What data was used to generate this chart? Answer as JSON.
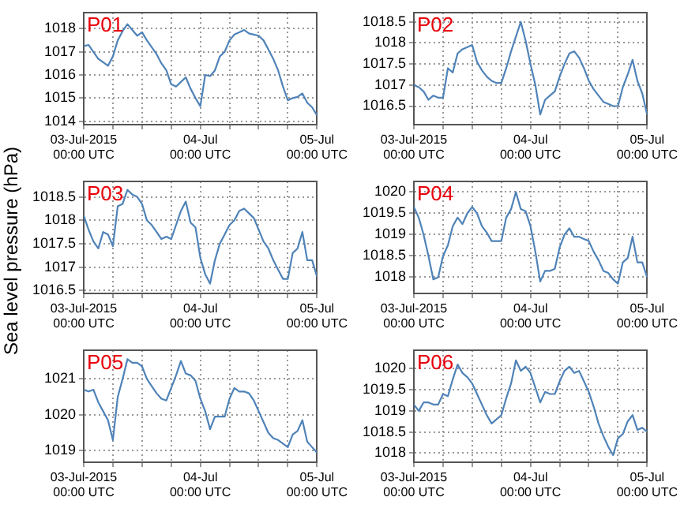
{
  "chart_data": [
    {
      "type": "line",
      "title": "P01",
      "color": "#4f83b8",
      "grid": true,
      "x": [
        "2015-07-03T00:00",
        "2015-07-03T01:00",
        "2015-07-03T02:00",
        "2015-07-03T03:00",
        "2015-07-03T04:00",
        "2015-07-03T05:00",
        "2015-07-03T06:00",
        "2015-07-03T07:00",
        "2015-07-03T08:00",
        "2015-07-03T09:00",
        "2015-07-03T10:00",
        "2015-07-03T11:00",
        "2015-07-03T12:00",
        "2015-07-03T13:00",
        "2015-07-03T14:00",
        "2015-07-03T15:00",
        "2015-07-03T16:00",
        "2015-07-03T17:00",
        "2015-07-03T18:00",
        "2015-07-03T19:00",
        "2015-07-03T20:00",
        "2015-07-03T21:00",
        "2015-07-03T22:00",
        "2015-07-03T23:00",
        "2015-07-04T00:00",
        "2015-07-04T01:00",
        "2015-07-04T02:00",
        "2015-07-04T03:00",
        "2015-07-04T04:00",
        "2015-07-04T05:00",
        "2015-07-04T06:00",
        "2015-07-04T07:00",
        "2015-07-04T08:00",
        "2015-07-04T09:00",
        "2015-07-04T10:00",
        "2015-07-04T11:00",
        "2015-07-04T12:00",
        "2015-07-04T13:00",
        "2015-07-04T14:00",
        "2015-07-04T15:00",
        "2015-07-04T16:00",
        "2015-07-04T17:00",
        "2015-07-04T18:00",
        "2015-07-04T19:00",
        "2015-07-04T20:00",
        "2015-07-04T21:00",
        "2015-07-04T22:00",
        "2015-07-04T23:00",
        "2015-07-05T00:00"
      ],
      "values": [
        1017.25,
        1017.3,
        1017.0,
        1016.7,
        1016.55,
        1016.4,
        1016.8,
        1017.5,
        1017.9,
        1018.2,
        1017.95,
        1017.7,
        1017.85,
        1017.5,
        1017.2,
        1016.9,
        1016.5,
        1016.2,
        1015.6,
        1015.5,
        1015.7,
        1015.9,
        1015.4,
        1015.0,
        1014.65,
        1016.0,
        1015.95,
        1016.2,
        1016.8,
        1017.0,
        1017.5,
        1017.75,
        1017.85,
        1017.95,
        1017.8,
        1017.75,
        1017.7,
        1017.5,
        1017.1,
        1016.7,
        1016.2,
        1015.5,
        1014.9,
        1015.0,
        1015.05,
        1015.2,
        1014.8,
        1014.6,
        1014.25
      ],
      "xlim": [
        "2015-07-03T00:00",
        "2015-07-05T00:00"
      ],
      "ylim": [
        1013.85,
        1018.7
      ],
      "yticks": [
        1014,
        1015,
        1016,
        1017,
        1018
      ],
      "xticks": [
        {
          "value": "2015-07-03T00:00",
          "label": "03-Jul-2015\n00:00 UTC"
        },
        {
          "value": "2015-07-03T06:00",
          "label": null
        },
        {
          "value": "2015-07-03T12:00",
          "label": null
        },
        {
          "value": "2015-07-03T18:00",
          "label": null
        },
        {
          "value": "2015-07-04T00:00",
          "label": "04-Jul\n00:00 UTC"
        },
        {
          "value": "2015-07-04T06:00",
          "label": null
        },
        {
          "value": "2015-07-04T12:00",
          "label": null
        },
        {
          "value": "2015-07-04T18:00",
          "label": null
        },
        {
          "value": "2015-07-05T00:00",
          "label": "05-Jul\n00:00 UTC"
        }
      ]
    },
    {
      "type": "line",
      "title": "P02",
      "color": "#4f83b8",
      "grid": true,
      "x": [
        "2015-07-03T00:00",
        "2015-07-03T01:00",
        "2015-07-03T02:00",
        "2015-07-03T03:00",
        "2015-07-03T04:00",
        "2015-07-03T05:00",
        "2015-07-03T06:00",
        "2015-07-03T07:00",
        "2015-07-03T08:00",
        "2015-07-03T09:00",
        "2015-07-03T10:00",
        "2015-07-03T11:00",
        "2015-07-03T12:00",
        "2015-07-03T13:00",
        "2015-07-03T14:00",
        "2015-07-03T15:00",
        "2015-07-03T16:00",
        "2015-07-03T17:00",
        "2015-07-03T18:00",
        "2015-07-03T19:00",
        "2015-07-03T20:00",
        "2015-07-03T21:00",
        "2015-07-03T22:00",
        "2015-07-03T23:00",
        "2015-07-04T00:00",
        "2015-07-04T01:00",
        "2015-07-04T02:00",
        "2015-07-04T03:00",
        "2015-07-04T04:00",
        "2015-07-04T05:00",
        "2015-07-04T06:00",
        "2015-07-04T07:00",
        "2015-07-04T08:00",
        "2015-07-04T09:00",
        "2015-07-04T10:00",
        "2015-07-04T11:00",
        "2015-07-04T12:00",
        "2015-07-04T13:00",
        "2015-07-04T14:00",
        "2015-07-04T15:00",
        "2015-07-04T16:00",
        "2015-07-04T17:00",
        "2015-07-04T18:00",
        "2015-07-04T19:00",
        "2015-07-04T20:00",
        "2015-07-04T21:00",
        "2015-07-04T22:00",
        "2015-07-04T23:00",
        "2015-07-05T00:00"
      ],
      "values": [
        1017.0,
        1016.95,
        1016.85,
        1016.65,
        1016.75,
        1016.7,
        1016.7,
        1017.4,
        1017.3,
        1017.75,
        1017.85,
        1017.9,
        1017.95,
        1017.55,
        1017.35,
        1017.2,
        1017.1,
        1017.05,
        1017.05,
        1017.4,
        1017.8,
        1018.15,
        1018.5,
        1018.05,
        1017.5,
        1017.0,
        1016.3,
        1016.65,
        1016.75,
        1016.85,
        1017.2,
        1017.5,
        1017.75,
        1017.8,
        1017.65,
        1017.4,
        1017.1,
        1016.9,
        1016.75,
        1016.6,
        1016.55,
        1016.5,
        1016.5,
        1016.95,
        1017.25,
        1017.6,
        1017.1,
        1016.8,
        1016.3
      ],
      "xlim": [
        "2015-07-03T00:00",
        "2015-07-05T00:00"
      ],
      "ylim": [
        1016.06,
        1018.72
      ],
      "yticks": [
        1016.5,
        1017,
        1017.5,
        1018,
        1018.5
      ],
      "xticks": [
        {
          "value": "2015-07-03T00:00",
          "label": "03-Jul-2015\n00:00 UTC"
        },
        {
          "value": "2015-07-03T06:00",
          "label": null
        },
        {
          "value": "2015-07-03T12:00",
          "label": null
        },
        {
          "value": "2015-07-03T18:00",
          "label": null
        },
        {
          "value": "2015-07-04T00:00",
          "label": "04-Jul\n00:00 UTC"
        },
        {
          "value": "2015-07-04T06:00",
          "label": null
        },
        {
          "value": "2015-07-04T12:00",
          "label": null
        },
        {
          "value": "2015-07-04T18:00",
          "label": null
        },
        {
          "value": "2015-07-05T00:00",
          "label": "05-Jul\n00:00 UTC"
        }
      ]
    },
    {
      "type": "line",
      "title": "P03",
      "ylabel": "Sea level pressure (hPa)",
      "color": "#4f83b8",
      "grid": true,
      "x": [
        "2015-07-03T00:00",
        "2015-07-03T01:00",
        "2015-07-03T02:00",
        "2015-07-03T03:00",
        "2015-07-03T04:00",
        "2015-07-03T05:00",
        "2015-07-03T06:00",
        "2015-07-03T07:00",
        "2015-07-03T08:00",
        "2015-07-03T09:00",
        "2015-07-03T10:00",
        "2015-07-03T11:00",
        "2015-07-03T12:00",
        "2015-07-03T13:00",
        "2015-07-03T14:00",
        "2015-07-03T15:00",
        "2015-07-03T16:00",
        "2015-07-03T17:00",
        "2015-07-03T18:00",
        "2015-07-03T19:00",
        "2015-07-03T20:00",
        "2015-07-03T21:00",
        "2015-07-03T22:00",
        "2015-07-03T23:00",
        "2015-07-04T00:00",
        "2015-07-04T01:00",
        "2015-07-04T02:00",
        "2015-07-04T03:00",
        "2015-07-04T04:00",
        "2015-07-04T05:00",
        "2015-07-04T06:00",
        "2015-07-04T07:00",
        "2015-07-04T08:00",
        "2015-07-04T09:00",
        "2015-07-04T10:00",
        "2015-07-04T11:00",
        "2015-07-04T12:00",
        "2015-07-04T13:00",
        "2015-07-04T14:00",
        "2015-07-04T15:00",
        "2015-07-04T16:00",
        "2015-07-04T17:00",
        "2015-07-04T18:00",
        "2015-07-04T19:00",
        "2015-07-04T20:00",
        "2015-07-04T21:00",
        "2015-07-04T22:00",
        "2015-07-04T23:00",
        "2015-07-05T00:00"
      ],
      "values": [
        1018.1,
        1017.8,
        1017.55,
        1017.4,
        1017.75,
        1017.7,
        1017.45,
        1018.3,
        1018.35,
        1018.65,
        1018.55,
        1018.5,
        1018.35,
        1018.0,
        1017.9,
        1017.75,
        1017.6,
        1017.65,
        1017.6,
        1017.9,
        1018.2,
        1018.4,
        1017.95,
        1017.85,
        1017.2,
        1016.85,
        1016.65,
        1017.15,
        1017.5,
        1017.7,
        1017.9,
        1018.0,
        1018.2,
        1018.25,
        1018.15,
        1018.05,
        1017.8,
        1017.55,
        1017.4,
        1017.15,
        1016.95,
        1016.75,
        1016.75,
        1017.3,
        1017.4,
        1017.75,
        1017.15,
        1017.15,
        1016.8
      ],
      "xlim": [
        "2015-07-03T00:00",
        "2015-07-05T00:00"
      ],
      "ylim": [
        1016.44,
        1018.83
      ],
      "yticks": [
        1016.5,
        1017,
        1017.5,
        1018,
        1018.5
      ],
      "xticks": [
        {
          "value": "2015-07-03T00:00",
          "label": "03-Jul-2015\n00:00 UTC"
        },
        {
          "value": "2015-07-03T06:00",
          "label": null
        },
        {
          "value": "2015-07-03T12:00",
          "label": null
        },
        {
          "value": "2015-07-03T18:00",
          "label": null
        },
        {
          "value": "2015-07-04T00:00",
          "label": "04-Jul\n00:00 UTC"
        },
        {
          "value": "2015-07-04T06:00",
          "label": null
        },
        {
          "value": "2015-07-04T12:00",
          "label": null
        },
        {
          "value": "2015-07-04T18:00",
          "label": null
        },
        {
          "value": "2015-07-05T00:00",
          "label": "05-Jul\n00:00 UTC"
        }
      ]
    },
    {
      "type": "line",
      "title": "P04",
      "color": "#4f83b8",
      "grid": true,
      "x": [
        "2015-07-03T00:00",
        "2015-07-03T01:00",
        "2015-07-03T02:00",
        "2015-07-03T03:00",
        "2015-07-03T04:00",
        "2015-07-03T05:00",
        "2015-07-03T06:00",
        "2015-07-03T07:00",
        "2015-07-03T08:00",
        "2015-07-03T09:00",
        "2015-07-03T10:00",
        "2015-07-03T11:00",
        "2015-07-03T12:00",
        "2015-07-03T13:00",
        "2015-07-03T14:00",
        "2015-07-03T15:00",
        "2015-07-03T16:00",
        "2015-07-03T17:00",
        "2015-07-03T18:00",
        "2015-07-03T19:00",
        "2015-07-03T20:00",
        "2015-07-03T21:00",
        "2015-07-03T22:00",
        "2015-07-03T23:00",
        "2015-07-04T00:00",
        "2015-07-04T01:00",
        "2015-07-04T02:00",
        "2015-07-04T03:00",
        "2015-07-04T04:00",
        "2015-07-04T05:00",
        "2015-07-04T06:00",
        "2015-07-04T07:00",
        "2015-07-04T08:00",
        "2015-07-04T09:00",
        "2015-07-04T10:00",
        "2015-07-04T11:00",
        "2015-07-04T12:00",
        "2015-07-04T13:00",
        "2015-07-04T14:00",
        "2015-07-04T15:00",
        "2015-07-04T16:00",
        "2015-07-04T17:00",
        "2015-07-04T18:00",
        "2015-07-04T19:00",
        "2015-07-04T20:00",
        "2015-07-04T21:00",
        "2015-07-04T22:00",
        "2015-07-04T23:00",
        "2015-07-05T00:00"
      ],
      "values": [
        1019.65,
        1019.4,
        1019.0,
        1018.5,
        1017.95,
        1018.0,
        1018.5,
        1018.75,
        1019.2,
        1019.4,
        1019.25,
        1019.5,
        1019.65,
        1019.5,
        1019.2,
        1019.05,
        1018.85,
        1018.85,
        1018.85,
        1019.4,
        1019.6,
        1020.0,
        1019.6,
        1019.55,
        1019.2,
        1018.6,
        1017.9,
        1018.15,
        1018.15,
        1018.2,
        1018.7,
        1019.0,
        1019.15,
        1018.95,
        1018.95,
        1018.9,
        1018.85,
        1018.6,
        1018.4,
        1018.15,
        1018.1,
        1017.95,
        1017.85,
        1018.35,
        1018.45,
        1018.95,
        1018.35,
        1018.35,
        1018.0
      ],
      "xlim": [
        "2015-07-03T00:00",
        "2015-07-05T00:00"
      ],
      "ylim": [
        1017.62,
        1020.25
      ],
      "yticks": [
        1018,
        1018.5,
        1019,
        1019.5,
        1020
      ],
      "xticks": [
        {
          "value": "2015-07-03T00:00",
          "label": "03-Jul-2015\n00:00 UTC"
        },
        {
          "value": "2015-07-03T06:00",
          "label": null
        },
        {
          "value": "2015-07-03T12:00",
          "label": null
        },
        {
          "value": "2015-07-03T18:00",
          "label": null
        },
        {
          "value": "2015-07-04T00:00",
          "label": "04-Jul\n00:00 UTC"
        },
        {
          "value": "2015-07-04T06:00",
          "label": null
        },
        {
          "value": "2015-07-04T12:00",
          "label": null
        },
        {
          "value": "2015-07-04T18:00",
          "label": null
        },
        {
          "value": "2015-07-05T00:00",
          "label": "05-Jul\n00:00 UTC"
        }
      ]
    },
    {
      "type": "line",
      "title": "P05",
      "color": "#4f83b8",
      "grid": true,
      "x": [
        "2015-07-03T00:00",
        "2015-07-03T01:00",
        "2015-07-03T02:00",
        "2015-07-03T03:00",
        "2015-07-03T04:00",
        "2015-07-03T05:00",
        "2015-07-03T06:00",
        "2015-07-03T07:00",
        "2015-07-03T08:00",
        "2015-07-03T09:00",
        "2015-07-03T10:00",
        "2015-07-03T11:00",
        "2015-07-03T12:00",
        "2015-07-03T13:00",
        "2015-07-03T14:00",
        "2015-07-03T15:00",
        "2015-07-03T16:00",
        "2015-07-03T17:00",
        "2015-07-03T18:00",
        "2015-07-03T19:00",
        "2015-07-03T20:00",
        "2015-07-03T21:00",
        "2015-07-03T22:00",
        "2015-07-03T23:00",
        "2015-07-04T00:00",
        "2015-07-04T01:00",
        "2015-07-04T02:00",
        "2015-07-04T03:00",
        "2015-07-04T04:00",
        "2015-07-04T05:00",
        "2015-07-04T06:00",
        "2015-07-04T07:00",
        "2015-07-04T08:00",
        "2015-07-04T09:00",
        "2015-07-04T10:00",
        "2015-07-04T11:00",
        "2015-07-04T12:00",
        "2015-07-04T13:00",
        "2015-07-04T14:00",
        "2015-07-04T15:00",
        "2015-07-04T16:00",
        "2015-07-04T17:00",
        "2015-07-04T18:00",
        "2015-07-04T19:00",
        "2015-07-04T20:00",
        "2015-07-04T21:00",
        "2015-07-04T22:00",
        "2015-07-04T23:00",
        "2015-07-05T00:00"
      ],
      "values": [
        1020.7,
        1020.65,
        1020.7,
        1020.35,
        1020.1,
        1019.85,
        1019.3,
        1020.5,
        1021.0,
        1021.55,
        1021.45,
        1021.45,
        1021.35,
        1021.0,
        1020.8,
        1020.6,
        1020.45,
        1020.4,
        1020.75,
        1021.1,
        1021.5,
        1021.15,
        1021.1,
        1020.95,
        1020.45,
        1020.1,
        1019.6,
        1019.95,
        1019.95,
        1019.95,
        1020.45,
        1020.75,
        1020.65,
        1020.65,
        1020.6,
        1020.4,
        1020.1,
        1019.8,
        1019.5,
        1019.35,
        1019.3,
        1019.2,
        1019.1,
        1019.45,
        1019.55,
        1019.85,
        1019.25,
        1019.1,
        1018.95
      ],
      "xlim": [
        "2015-07-03T00:00",
        "2015-07-05T00:00"
      ],
      "ylim": [
        1018.68,
        1021.8
      ],
      "yticks": [
        1019,
        1020,
        1021
      ],
      "xticks": [
        {
          "value": "2015-07-03T00:00",
          "label": "03-Jul-2015\n00:00 UTC"
        },
        {
          "value": "2015-07-03T06:00",
          "label": null
        },
        {
          "value": "2015-07-03T12:00",
          "label": null
        },
        {
          "value": "2015-07-03T18:00",
          "label": null
        },
        {
          "value": "2015-07-04T00:00",
          "label": "04-Jul\n00:00 UTC"
        },
        {
          "value": "2015-07-04T06:00",
          "label": null
        },
        {
          "value": "2015-07-04T12:00",
          "label": null
        },
        {
          "value": "2015-07-04T18:00",
          "label": null
        },
        {
          "value": "2015-07-05T00:00",
          "label": "05-Jul\n00:00 UTC"
        }
      ]
    },
    {
      "type": "line",
      "title": "P06",
      "color": "#4f83b8",
      "grid": true,
      "x": [
        "2015-07-03T00:00",
        "2015-07-03T01:00",
        "2015-07-03T02:00",
        "2015-07-03T03:00",
        "2015-07-03T04:00",
        "2015-07-03T05:00",
        "2015-07-03T06:00",
        "2015-07-03T07:00",
        "2015-07-03T08:00",
        "2015-07-03T09:00",
        "2015-07-03T10:00",
        "2015-07-03T11:00",
        "2015-07-03T12:00",
        "2015-07-03T13:00",
        "2015-07-03T14:00",
        "2015-07-03T15:00",
        "2015-07-03T16:00",
        "2015-07-03T17:00",
        "2015-07-03T18:00",
        "2015-07-03T19:00",
        "2015-07-03T20:00",
        "2015-07-03T21:00",
        "2015-07-03T22:00",
        "2015-07-03T23:00",
        "2015-07-04T00:00",
        "2015-07-04T01:00",
        "2015-07-04T02:00",
        "2015-07-04T03:00",
        "2015-07-04T04:00",
        "2015-07-04T05:00",
        "2015-07-04T06:00",
        "2015-07-04T07:00",
        "2015-07-04T08:00",
        "2015-07-04T09:00",
        "2015-07-04T10:00",
        "2015-07-04T11:00",
        "2015-07-04T12:00",
        "2015-07-04T13:00",
        "2015-07-04T14:00",
        "2015-07-04T15:00",
        "2015-07-04T16:00",
        "2015-07-04T17:00",
        "2015-07-04T18:00",
        "2015-07-04T19:00",
        "2015-07-04T20:00",
        "2015-07-04T21:00",
        "2015-07-04T22:00",
        "2015-07-04T23:00",
        "2015-07-05T00:00"
      ],
      "values": [
        1019.15,
        1019.0,
        1019.2,
        1019.2,
        1019.15,
        1019.15,
        1019.4,
        1019.35,
        1019.75,
        1020.1,
        1019.9,
        1019.8,
        1019.65,
        1019.4,
        1019.15,
        1018.9,
        1018.7,
        1018.8,
        1018.9,
        1019.3,
        1019.65,
        1020.2,
        1019.95,
        1020.05,
        1019.9,
        1019.55,
        1019.2,
        1019.45,
        1019.4,
        1019.4,
        1019.7,
        1019.95,
        1020.05,
        1019.9,
        1019.95,
        1019.7,
        1019.45,
        1019.1,
        1018.7,
        1018.4,
        1018.15,
        1017.95,
        1018.35,
        1018.45,
        1018.75,
        1018.9,
        1018.55,
        1018.6,
        1018.5
      ],
      "xlim": [
        "2015-07-03T00:00",
        "2015-07-05T00:00"
      ],
      "ylim": [
        1017.78,
        1020.44
      ],
      "yticks": [
        1018,
        1018.5,
        1019,
        1019.5,
        1020
      ],
      "xticks": [
        {
          "value": "2015-07-03T00:00",
          "label": "03-Jul-2015\n00:00 UTC"
        },
        {
          "value": "2015-07-03T06:00",
          "label": null
        },
        {
          "value": "2015-07-03T12:00",
          "label": null
        },
        {
          "value": "2015-07-03T18:00",
          "label": null
        },
        {
          "value": "2015-07-04T00:00",
          "label": "04-Jul\n00:00 UTC"
        },
        {
          "value": "2015-07-04T06:00",
          "label": null
        },
        {
          "value": "2015-07-04T12:00",
          "label": null
        },
        {
          "value": "2015-07-04T18:00",
          "label": null
        },
        {
          "value": "2015-07-05T00:00",
          "label": "05-Jul\n00:00 UTC"
        }
      ]
    }
  ]
}
